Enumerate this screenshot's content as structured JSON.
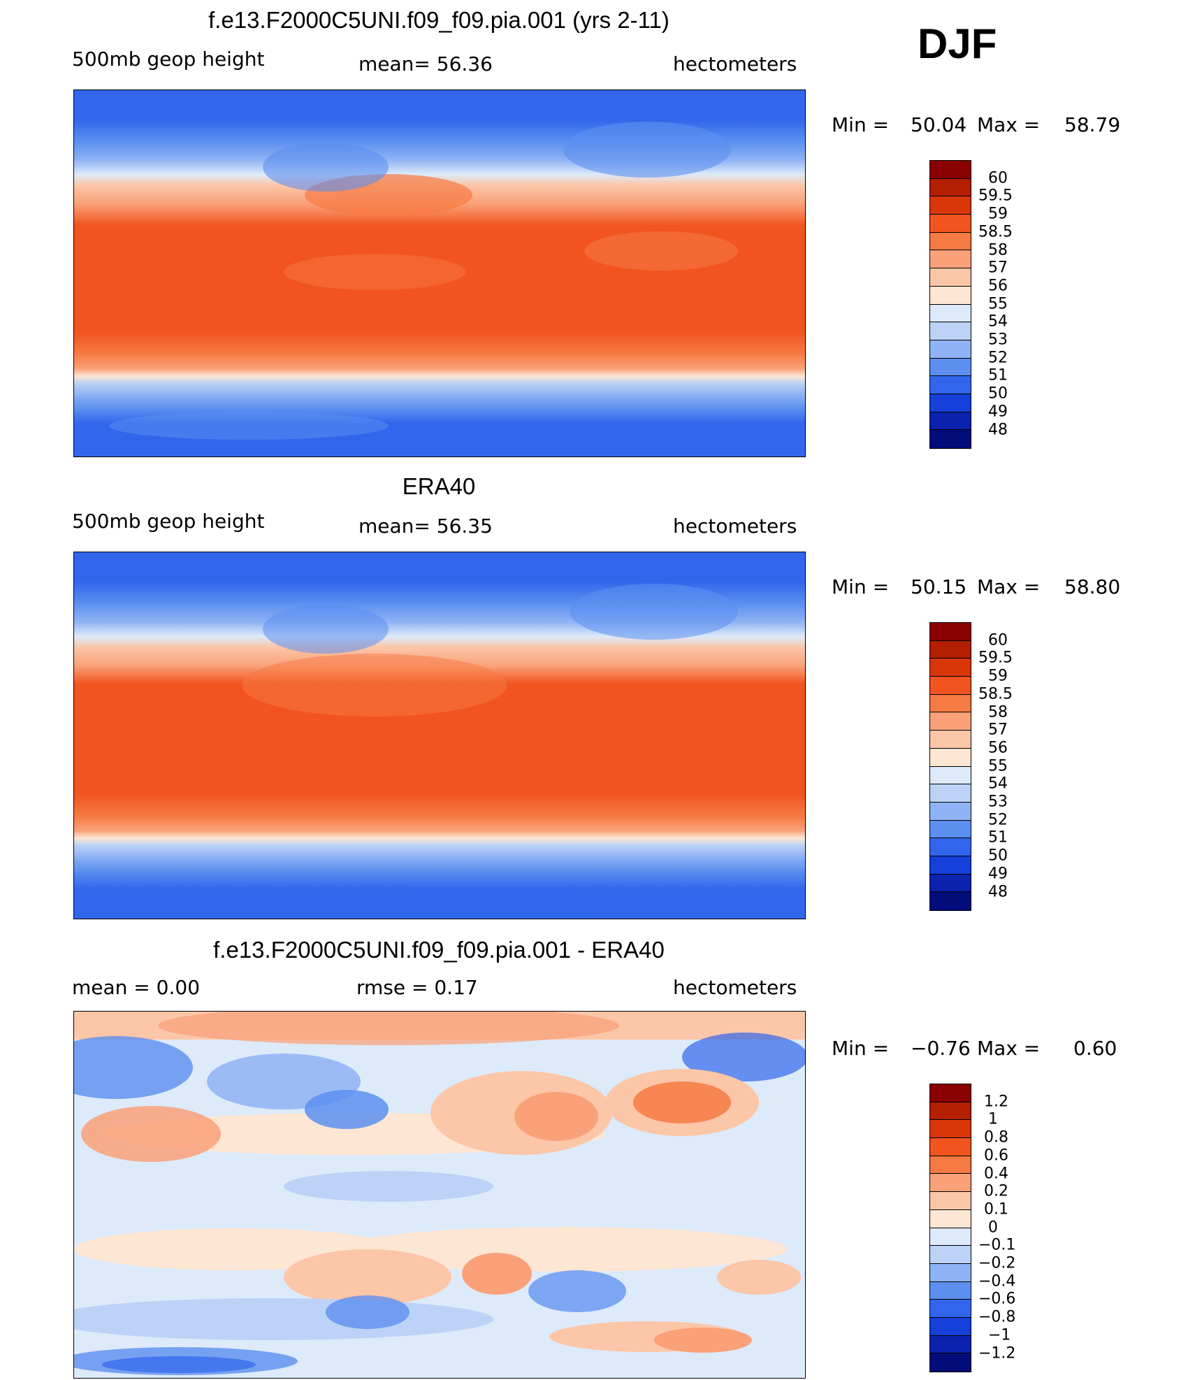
{
  "season": "DJF",
  "panels": [
    {
      "id": "model",
      "title": "f.e13.F2000C5UNI.f09_f09.pia.001 (yrs 2-11)",
      "left_label": "500mb  geop  height",
      "center_label": "mean=   56.36",
      "right_label": "hectometers",
      "min_label": "Min  =",
      "min_value": "50.04",
      "max_label": "Max  =",
      "max_value": "58.79",
      "colorbar": {
        "levels": [
          "60",
          "59.5",
          "59",
          "58.5",
          "58",
          "57",
          "56",
          "55",
          "54",
          "53",
          "52",
          "51",
          "50",
          "49",
          "48"
        ],
        "colors": [
          "#8b0000",
          "#b31f00",
          "#d9370a",
          "#f2541f",
          "#f67a43",
          "#faa179",
          "#fcc6a8",
          "#fde6d3",
          "#ddeaf9",
          "#bcd2f6",
          "#8fb3f4",
          "#5c8ff0",
          "#3166ec",
          "#1440d9",
          "#0a22ad",
          "#020c7a"
        ]
      }
    },
    {
      "id": "obs",
      "title": "ERA40",
      "left_label": "500mb  geop  height",
      "center_label": "mean=   56.35",
      "right_label": "hectometers",
      "min_label": "Min  =",
      "min_value": "50.15",
      "max_label": "Max  =",
      "max_value": "58.80",
      "colorbar": {
        "levels": [
          "60",
          "59.5",
          "59",
          "58.5",
          "58",
          "57",
          "56",
          "55",
          "54",
          "53",
          "52",
          "51",
          "50",
          "49",
          "48"
        ],
        "colors": [
          "#8b0000",
          "#b31f00",
          "#d9370a",
          "#f2541f",
          "#f67a43",
          "#faa179",
          "#fcc6a8",
          "#fde6d3",
          "#ddeaf9",
          "#bcd2f6",
          "#8fb3f4",
          "#5c8ff0",
          "#3166ec",
          "#1440d9",
          "#0a22ad",
          "#020c7a"
        ]
      }
    },
    {
      "id": "diff",
      "title": "f.e13.F2000C5UNI.f09_f09.pia.001 - ERA40",
      "left_label": "mean  =     0.00",
      "center_label": "rmse  =     0.17",
      "right_label": "hectometers",
      "min_label": "Min  =",
      "min_value": "−0.76",
      "max_label": "Max  =",
      "max_value": "0.60",
      "colorbar": {
        "levels": [
          "1.2",
          "1",
          "0.8",
          "0.6",
          "0.4",
          "0.2",
          "0.1",
          "0",
          "−0.1",
          "−0.2",
          "−0.4",
          "−0.6",
          "−0.8",
          "−1",
          "−1.2"
        ],
        "colors": [
          "#8b0000",
          "#b31f00",
          "#d9370a",
          "#f2541f",
          "#f67a43",
          "#faa179",
          "#fcc6a8",
          "#fde6d3",
          "#ddeaf9",
          "#bcd2f6",
          "#8fb3f4",
          "#5c8ff0",
          "#3166ec",
          "#1440d9",
          "#0a22ad",
          "#020c7a"
        ]
      }
    }
  ]
}
